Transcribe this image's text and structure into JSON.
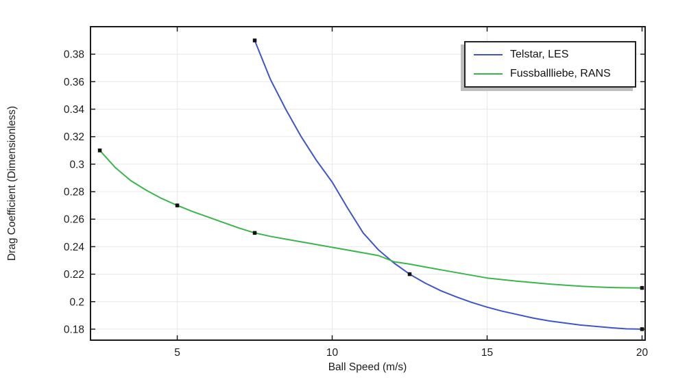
{
  "chart_data": {
    "type": "line",
    "title": "",
    "xlabel": "Ball Speed (m/s)",
    "ylabel": "Drag Coefficient (Dimensionless)",
    "xlim": [
      2.2,
      20.1
    ],
    "ylim": [
      0.172,
      0.4
    ],
    "grid": true,
    "grid_color": "#e8e8e8",
    "axis_color": "#1a1a1a",
    "marker_color": "#111111",
    "background": "#ffffff",
    "xticks": [
      {
        "value": 5,
        "label": "5"
      },
      {
        "value": 10,
        "label": "10"
      },
      {
        "value": 15,
        "label": "15"
      },
      {
        "value": 20,
        "label": "20"
      }
    ],
    "yticks": [
      {
        "value": 0.18,
        "label": "0.18"
      },
      {
        "value": 0.2,
        "label": "0.2"
      },
      {
        "value": 0.22,
        "label": "0.22"
      },
      {
        "value": 0.24,
        "label": "0.24"
      },
      {
        "value": 0.26,
        "label": "0.26"
      },
      {
        "value": 0.28,
        "label": "0.28"
      },
      {
        "value": 0.3,
        "label": "0.3"
      },
      {
        "value": 0.32,
        "label": "0.32"
      },
      {
        "value": 0.34,
        "label": "0.34"
      },
      {
        "value": 0.36,
        "label": "0.36"
      },
      {
        "value": 0.38,
        "label": "0.38"
      }
    ],
    "legend": {
      "position": "top-right",
      "border": true,
      "shadow": true
    },
    "series": [
      {
        "name": "Telstar, LES",
        "color": "#3e55c9",
        "marker": "square",
        "data_points": [
          [
            7.5,
            0.39
          ],
          [
            12.5,
            0.22
          ],
          [
            20,
            0.18
          ]
        ],
        "curve": [
          [
            7.5,
            0.39
          ],
          [
            8,
            0.362
          ],
          [
            8.5,
            0.34
          ],
          [
            9,
            0.32
          ],
          [
            9.5,
            0.3025
          ],
          [
            10,
            0.287
          ],
          [
            10.5,
            0.268
          ],
          [
            11,
            0.25
          ],
          [
            11.5,
            0.2375
          ],
          [
            12,
            0.228
          ],
          [
            12.5,
            0.22
          ],
          [
            13,
            0.2135
          ],
          [
            13.5,
            0.208
          ],
          [
            14,
            0.2035
          ],
          [
            14.5,
            0.1995
          ],
          [
            15,
            0.196
          ],
          [
            15.5,
            0.193
          ],
          [
            16,
            0.1905
          ],
          [
            16.5,
            0.188
          ],
          [
            17,
            0.186
          ],
          [
            17.5,
            0.1845
          ],
          [
            18,
            0.183
          ],
          [
            18.5,
            0.182
          ],
          [
            19,
            0.181
          ],
          [
            19.5,
            0.1802
          ],
          [
            20,
            0.18
          ]
        ]
      },
      {
        "name": "Fussballliebe, RANS",
        "color": "#39b54a",
        "marker": "square",
        "data_points": [
          [
            2.5,
            0.31
          ],
          [
            5,
            0.27
          ],
          [
            7.5,
            0.25
          ],
          [
            20,
            0.21
          ]
        ],
        "curve": [
          [
            2.5,
            0.31
          ],
          [
            3,
            0.2975
          ],
          [
            3.5,
            0.288
          ],
          [
            4,
            0.281
          ],
          [
            4.5,
            0.275
          ],
          [
            5,
            0.27
          ],
          [
            5.5,
            0.2655
          ],
          [
            6,
            0.2615
          ],
          [
            6.5,
            0.2575
          ],
          [
            7,
            0.2535
          ],
          [
            7.5,
            0.25
          ],
          [
            8,
            0.2475
          ],
          [
            8.5,
            0.2455
          ],
          [
            9,
            0.2435
          ],
          [
            9.5,
            0.2415
          ],
          [
            10,
            0.2395
          ],
          [
            10.5,
            0.2375
          ],
          [
            11,
            0.2355
          ],
          [
            11.5,
            0.2335
          ],
          [
            12,
            0.229
          ],
          [
            12.5,
            0.2273
          ],
          [
            13,
            0.2252
          ],
          [
            13.5,
            0.2232
          ],
          [
            14,
            0.2212
          ],
          [
            14.5,
            0.2192
          ],
          [
            15,
            0.2172
          ],
          [
            15.5,
            0.216
          ],
          [
            16,
            0.2148
          ],
          [
            16.5,
            0.2138
          ],
          [
            17,
            0.2128
          ],
          [
            17.5,
            0.212
          ],
          [
            18,
            0.2113
          ],
          [
            18.5,
            0.2107
          ],
          [
            19,
            0.2103
          ],
          [
            19.5,
            0.2101
          ],
          [
            20,
            0.21
          ]
        ]
      }
    ]
  }
}
